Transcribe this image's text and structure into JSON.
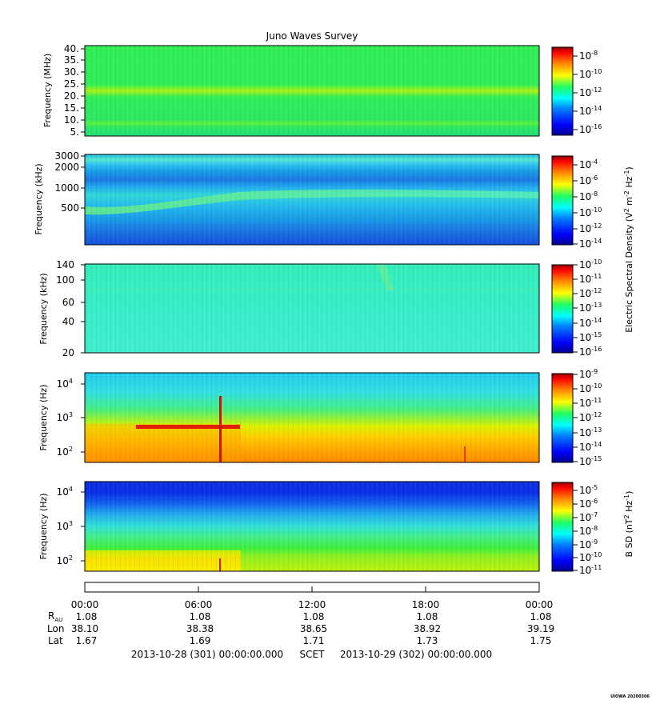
{
  "title": "Juno Waves Survey",
  "stamp": "UIOWA 20200306",
  "colors": {
    "jet": [
      "#00008f",
      "#0000ff",
      "#0080ff",
      "#00ffff",
      "#80ff80",
      "#ffff00",
      "#ff8000",
      "#ff0000",
      "#800000"
    ]
  },
  "chart_data": [
    {
      "type": "heatmap",
      "panel": 1,
      "ylabel": "Frequency (MHz)",
      "yscale": "linear",
      "ylim": [
        3.5,
        41
      ],
      "yticks": [
        {
          "value": 40,
          "label": "40."
        },
        {
          "value": 35,
          "label": "35."
        },
        {
          "value": 30,
          "label": "30."
        },
        {
          "value": 25,
          "label": "25."
        },
        {
          "value": 20,
          "label": "20."
        },
        {
          "value": 15,
          "label": "15."
        },
        {
          "value": 10,
          "label": "10."
        },
        {
          "value": 5,
          "label": "5."
        }
      ],
      "colorbar": {
        "scale": "log",
        "range": [
          -17,
          -7.5
        ],
        "ticks": [
          {
            "exp": -8,
            "label": "-8"
          },
          {
            "exp": -10,
            "label": "-10"
          },
          {
            "exp": -12,
            "label": "-12"
          },
          {
            "exp": -14,
            "label": "-14"
          },
          {
            "exp": -16,
            "label": "-16"
          }
        ],
        "label": ""
      }
    },
    {
      "type": "heatmap",
      "panel": 2,
      "ylabel": "Frequency (kHz)",
      "yscale": "log",
      "ylim": [
        150,
        3100
      ],
      "yticks": [
        {
          "value": 3000,
          "label": "3000"
        },
        {
          "value": 2000,
          "label": "2000"
        },
        {
          "value": 1000,
          "label": "1000"
        },
        {
          "value": 500,
          "label": "500"
        }
      ],
      "colorbar": {
        "scale": "log",
        "range": [
          -14,
          -3.5
        ],
        "ticks": [
          {
            "exp": -4,
            "label": "-4"
          },
          {
            "exp": -6,
            "label": "-6"
          },
          {
            "exp": -8,
            "label": "-8"
          },
          {
            "exp": -10,
            "label": "-10"
          },
          {
            "exp": -12,
            "label": "-12"
          },
          {
            "exp": -14,
            "label": "-14"
          }
        ],
        "label": "Electric Spectral Density (V² m⁻² Hz⁻¹)"
      }
    },
    {
      "type": "heatmap",
      "panel": 3,
      "ylabel": "Frequency (kHz)",
      "yscale": "log",
      "ylim": [
        20,
        140
      ],
      "yticks": [
        {
          "value": 140,
          "label": "140"
        },
        {
          "value": 100,
          "label": "100"
        },
        {
          "value": 60,
          "label": "60"
        },
        {
          "value": 40,
          "label": "40"
        },
        {
          "value": 20,
          "label": "20"
        }
      ],
      "colorbar": {
        "scale": "log",
        "range": [
          -16,
          -10
        ],
        "ticks": [
          {
            "exp": -10,
            "label": "-10"
          },
          {
            "exp": -11,
            "label": "-11"
          },
          {
            "exp": -12,
            "label": "-12"
          },
          {
            "exp": -13,
            "label": "-13"
          },
          {
            "exp": -14,
            "label": "-14"
          },
          {
            "exp": -15,
            "label": "-15"
          },
          {
            "exp": -16,
            "label": "-16"
          }
        ],
        "label": ""
      }
    },
    {
      "type": "heatmap",
      "panel": 4,
      "ylabel": "Frequency (Hz)",
      "yscale": "log",
      "ylim": [
        50,
        20000
      ],
      "yticks": [
        {
          "value": 10000,
          "base": "10",
          "exp": "4"
        },
        {
          "value": 1000,
          "base": "10",
          "exp": "3"
        },
        {
          "value": 100,
          "base": "10",
          "exp": "2"
        }
      ],
      "colorbar": {
        "scale": "log",
        "range": [
          -15,
          -9
        ],
        "ticks": [
          {
            "exp": -9,
            "label": "-9"
          },
          {
            "exp": -10,
            "label": "-10"
          },
          {
            "exp": -11,
            "label": "-11"
          },
          {
            "exp": -12,
            "label": "-12"
          },
          {
            "exp": -13,
            "label": "-13"
          },
          {
            "exp": -14,
            "label": "-14"
          },
          {
            "exp": -15,
            "label": "-15"
          }
        ],
        "label": ""
      }
    },
    {
      "type": "heatmap",
      "panel": 5,
      "ylabel": "Frequency (Hz)",
      "yscale": "log",
      "ylim": [
        50,
        22000
      ],
      "yticks": [
        {
          "value": 10000,
          "base": "10",
          "exp": "4"
        },
        {
          "value": 1000,
          "base": "10",
          "exp": "3"
        },
        {
          "value": 100,
          "base": "10",
          "exp": "2"
        }
      ],
      "colorbar": {
        "scale": "log",
        "range": [
          -11,
          -4.5
        ],
        "ticks": [
          {
            "exp": -5,
            "label": "-5"
          },
          {
            "exp": -6,
            "label": "-6"
          },
          {
            "exp": -7,
            "label": "-7"
          },
          {
            "exp": -8,
            "label": "-8"
          },
          {
            "exp": -9,
            "label": "-9"
          },
          {
            "exp": -10,
            "label": "-10"
          },
          {
            "exp": -11,
            "label": "-11"
          }
        ],
        "label": "B SD (nT² Hz⁻¹)"
      }
    }
  ],
  "time_axis": {
    "ticks": [
      "00:00",
      "06:00",
      "12:00",
      "18:00",
      "00:00"
    ],
    "rows": [
      {
        "label": "R",
        "sub": "AU",
        "values": [
          "1.08",
          "1.08",
          "1.08",
          "1.08",
          "1.08"
        ]
      },
      {
        "label": "Lon",
        "sub": "",
        "values": [
          "38.10",
          "38.38",
          "38.65",
          "38.92",
          "39.19"
        ]
      },
      {
        "label": "Lat",
        "sub": "",
        "values": [
          "1.67",
          "1.69",
          "1.71",
          "1.73",
          "1.75"
        ]
      }
    ],
    "start": "2013-10-28 (301) 00:00:00.000",
    "scet": "SCET",
    "end": "2013-10-29 (302) 00:00:00.000"
  }
}
